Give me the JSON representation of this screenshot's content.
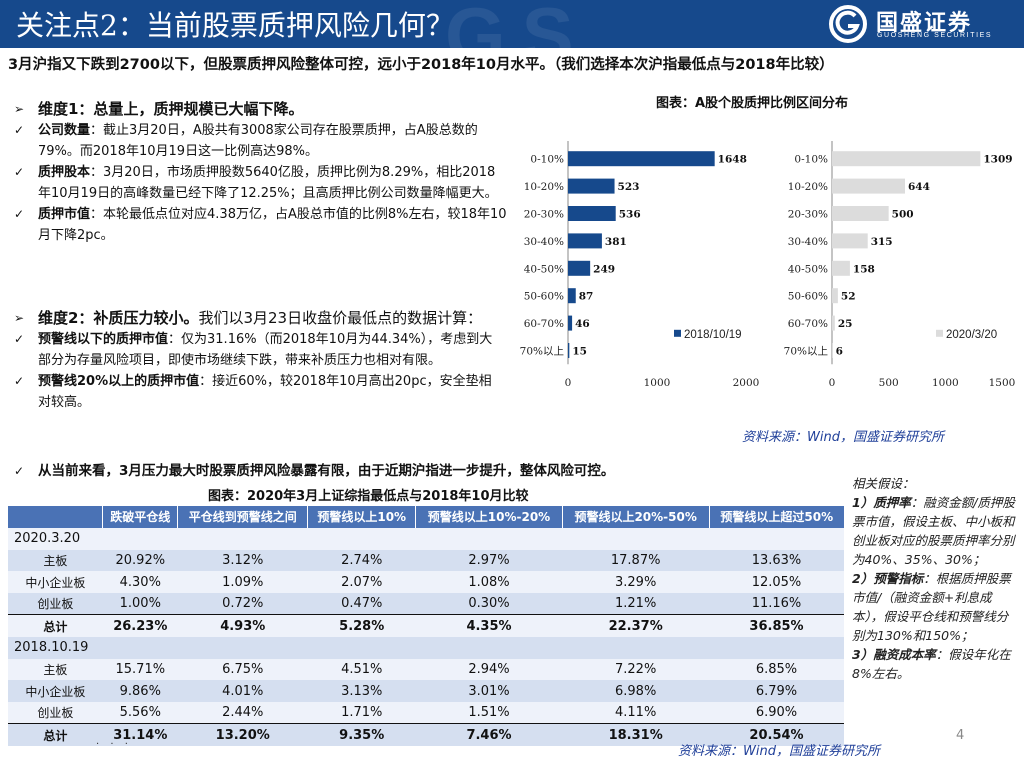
{
  "header": {
    "title": "关注点2：当前股票质押风险几何？",
    "logo_cn": "国盛证券",
    "logo_en": "GUOSHENG SECURITIES",
    "bg_color": "#16498c"
  },
  "lead": "3月沪指又下跌到2700以下，但股票质押风险整体可控，远小于2018年10月水平。（我们选择本次沪指最低点与2018年比较）",
  "dim1": {
    "heading": "维度1：总量上，质押规模已大幅下降。",
    "items": [
      {
        "label": "公司数量",
        "text": "：截止3月20日，A股共有3008家公司存在股票质押，占A股总数的79%。而2018年10月19日这一比例高达98%。"
      },
      {
        "label": "质押股本",
        "text": "：3月20日，市场质押股数5640亿股，质押比例为8.29%，相比2018年10月19日的高峰数量已经下降了12.25%；且高质押比例公司数量降幅更大。"
      },
      {
        "label": "质押市值",
        "text": "：本轮最低点位对应4.38万亿，占A股总市值的比例8%左右，较18年10月下降2pc。"
      }
    ]
  },
  "dim2": {
    "heading_bold": "维度2：补质压力较小。",
    "heading_rest": "我们以3月23日收盘价最低点的数据计算：",
    "items": [
      {
        "label": "预警线以下的质押市值",
        "text": "：仅为31.16%（而2018年10月为44.34%），考虑到大部分为存量风险项目，即使市场继续下跌，带来补质压力也相对有限。"
      },
      {
        "label": "预警线20%以上的质押市值",
        "text": "：接近60%，较2018年10月高出20pc，安全垫相对较高。"
      }
    ]
  },
  "chart_title": "图表：A股个股质押比例区间分布",
  "chart_data": [
    {
      "type": "bar",
      "orientation": "horizontal",
      "title": "图表：A股个股质押比例区间分布",
      "series": [
        {
          "name": "2018/10/19",
          "values": [
            1648,
            523,
            536,
            381,
            249,
            87,
            46,
            15
          ]
        }
      ],
      "categories": [
        "0-10%",
        "10-20%",
        "20-30%",
        "30-40%",
        "40-50%",
        "50-60%",
        "60-70%",
        "70%以上"
      ],
      "xlim": [
        0,
        2000
      ],
      "xticks": [
        "0",
        "1000",
        "2000"
      ],
      "color": "#16498c",
      "legend": "bottom-right"
    },
    {
      "type": "bar",
      "orientation": "horizontal",
      "title": "图表：A股个股质押比例区间分布",
      "series": [
        {
          "name": "2020/3/20",
          "values": [
            1309,
            644,
            500,
            315,
            158,
            52,
            25,
            6
          ]
        }
      ],
      "categories": [
        "0-10%",
        "10-20%",
        "20-30%",
        "30-40%",
        "40-50%",
        "50-60%",
        "60-70%",
        "70%以上"
      ],
      "xlim": [
        0,
        1500
      ],
      "xticks": [
        "0",
        "500",
        "1000",
        "1500"
      ],
      "color": "#dcdcdc",
      "legend": "bottom-right"
    }
  ],
  "source_text": "资料来源：Wind，国盛证券研究所",
  "conclusion": "从当前来看，3月压力最大时股票质押风险暴露有限，由于近期沪指进一步提升，整体风险可控。",
  "table": {
    "title": "图表：2020年3月上证综指最低点与2018年10月比较",
    "headers": [
      "",
      "跌破平仓线",
      "平仓线到预警线之间",
      "预警线以上10%",
      "预警线以上10%-20%",
      "预警线以上20%-50%",
      "预警线以上超过50%"
    ],
    "groups": [
      {
        "date": "2020.3.20",
        "rows": [
          {
            "label": "主板",
            "values": [
              "20.92%",
              "3.12%",
              "2.74%",
              "2.97%",
              "17.87%",
              "13.63%"
            ]
          },
          {
            "label": "中小企业板",
            "values": [
              "4.30%",
              "1.09%",
              "2.07%",
              "1.08%",
              "3.29%",
              "12.05%"
            ]
          },
          {
            "label": "创业板",
            "values": [
              "1.00%",
              "0.72%",
              "0.47%",
              "0.30%",
              "1.21%",
              "11.16%"
            ]
          },
          {
            "label": "总计",
            "values": [
              "26.23%",
              "4.93%",
              "5.28%",
              "4.35%",
              "22.37%",
              "36.85%"
            ],
            "total": true
          }
        ]
      },
      {
        "date": "2018.10.19",
        "rows": [
          {
            "label": "主板",
            "values": [
              "15.71%",
              "6.75%",
              "4.51%",
              "2.94%",
              "7.22%",
              "6.85%"
            ]
          },
          {
            "label": "中小企业板",
            "values": [
              "9.86%",
              "4.01%",
              "3.13%",
              "3.01%",
              "6.98%",
              "6.79%"
            ]
          },
          {
            "label": "创业板",
            "values": [
              "5.56%",
              "2.44%",
              "1.71%",
              "1.51%",
              "4.11%",
              "6.90%"
            ]
          },
          {
            "label": "总计",
            "values": [
              "31.14%",
              "13.20%",
              "9.35%",
              "7.46%",
              "18.31%",
              "20.54%"
            ],
            "total": true
          }
        ]
      }
    ]
  },
  "assumptions": {
    "title": "相关假设：",
    "items": [
      {
        "label": "1）质押率",
        "text": "：融资金额/质押股票市值，假设主板、中小板和创业板对应的股票质押率分别为40%、35%、30%；"
      },
      {
        "label": "2）预警指标",
        "text": "：根据质押股票市值/（融资金额+利息成本），假设平仓线和预警线分别为130%和150%；"
      },
      {
        "label": "3）融资成本率",
        "text": "：假设年化在8%左右。"
      }
    ]
  },
  "page_number": "4"
}
